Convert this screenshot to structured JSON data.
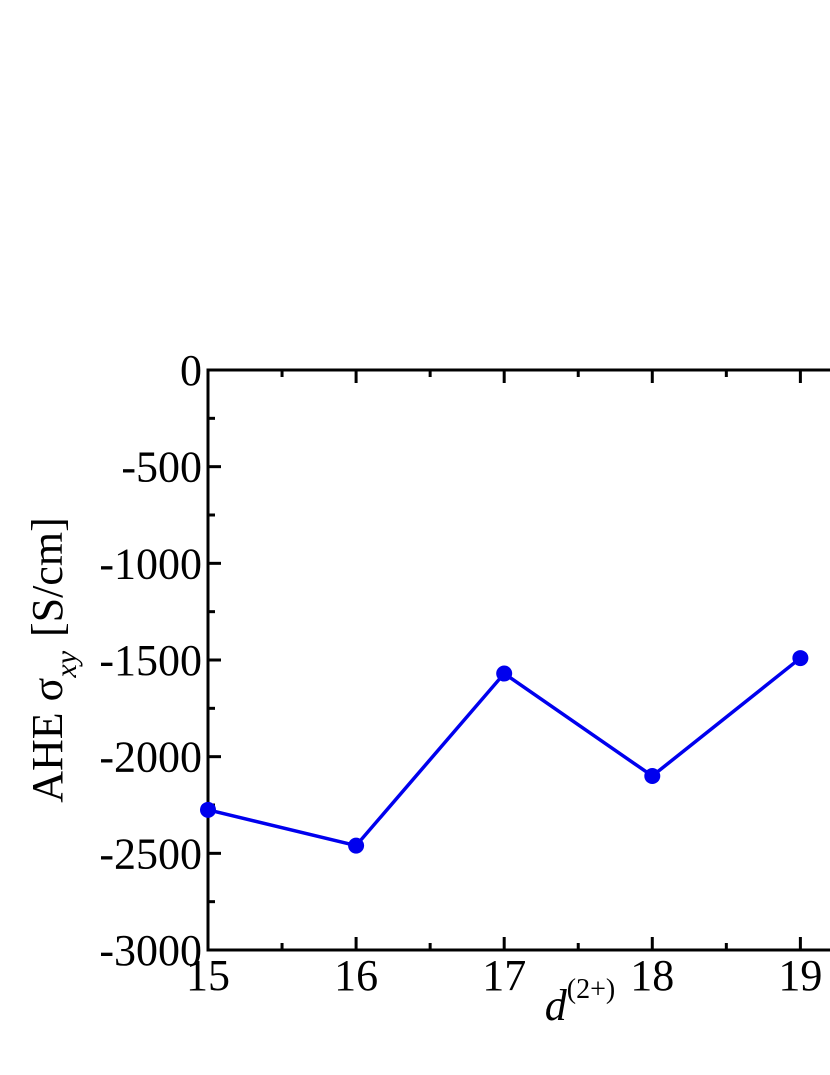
{
  "chart_data": {
    "type": "line",
    "x_label": "d",
    "x_label_sup": "(2+)",
    "y_label": "AHE σ",
    "y_label_sub": "xy",
    "y_label_unit": "[S/cm]",
    "x": [
      15,
      16,
      17,
      18,
      19
    ],
    "series": [
      {
        "color": "#0000ee",
        "values": [
          -2275,
          -2460,
          -1570,
          -2100,
          -1490
        ]
      }
    ],
    "xlim": [
      15,
      19.2
    ],
    "xticks": [
      15,
      16,
      17,
      18,
      19
    ],
    "ylim": [
      -3000,
      0
    ],
    "yticks": [
      -3000,
      -2500,
      -2000,
      -1500,
      -1000,
      -500,
      0
    ],
    "grid": false
  }
}
